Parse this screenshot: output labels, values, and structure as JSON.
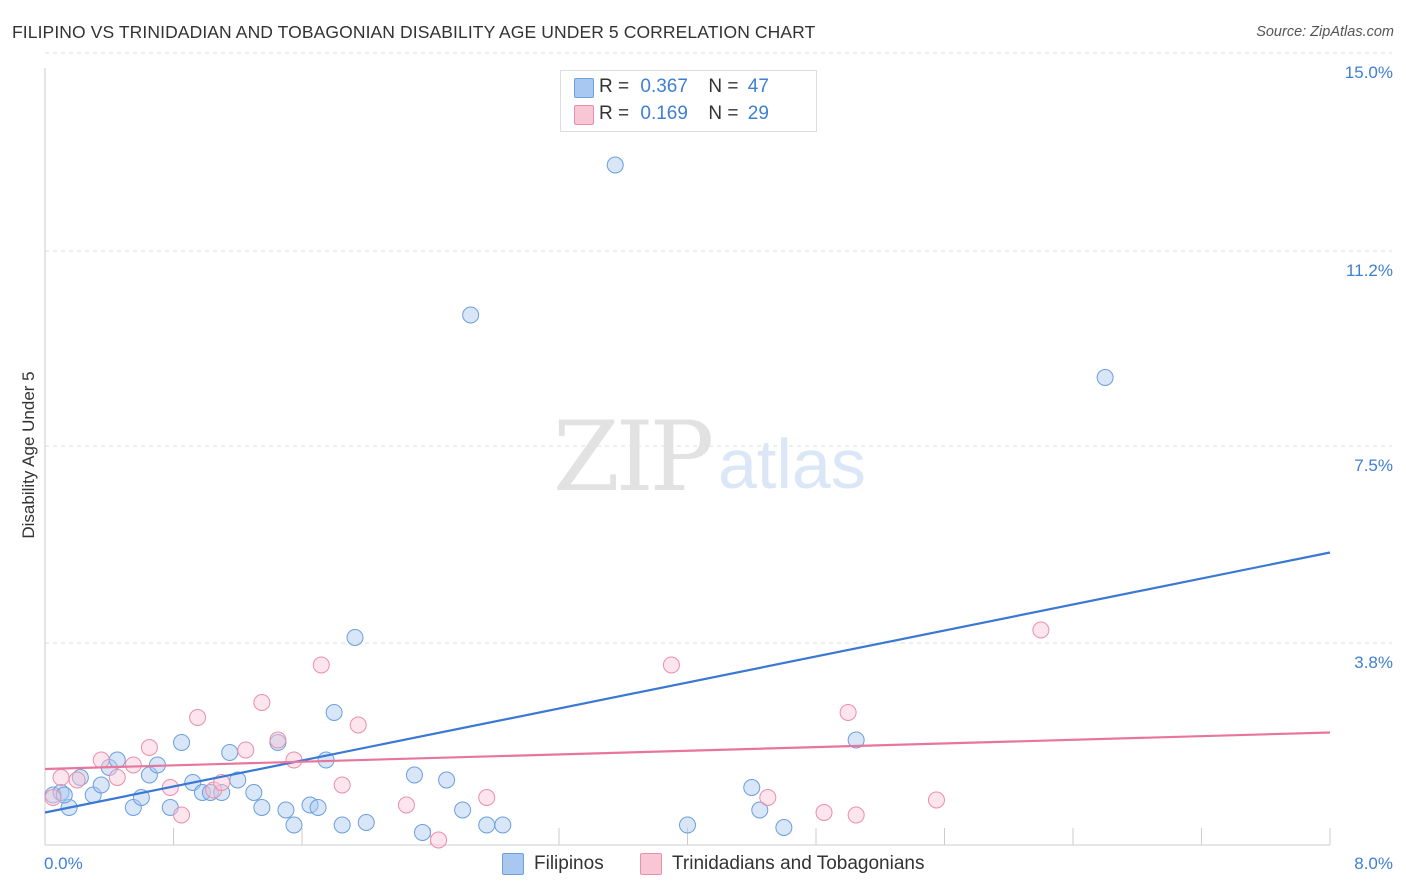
{
  "title": "FILIPINO VS TRINIDADIAN AND TOBAGONIAN DISABILITY AGE UNDER 5 CORRELATION CHART",
  "source": "Source: ZipAtlas.com",
  "watermark": {
    "zip": "ZIP",
    "atlas": "atlas"
  },
  "legend": {
    "r_label": "R =",
    "n_label": "N =",
    "rows": [
      {
        "r": "0.367",
        "n": "47",
        "color": "#a9c8f0",
        "border": "#6a9fe0"
      },
      {
        "r": "0.169",
        "n": "29",
        "color": "#f9c6d5",
        "border": "#eb8fab"
      }
    ]
  },
  "bottom_legend": [
    {
      "label": "Filipinos",
      "color": "#a9c8f0",
      "border": "#6a9fe0"
    },
    {
      "label": "Trinidadians and Tobagonians",
      "color": "#f9c6d5",
      "border": "#eb8fab"
    }
  ],
  "chart_data": {
    "type": "scatter",
    "xlabel": "",
    "ylabel": "Disability Age Under 5",
    "xlim": [
      0,
      8
    ],
    "ylim": [
      0,
      15.5
    ],
    "x_tick_labels": [
      "0.0%",
      "8.0%"
    ],
    "y_ticks": [
      3.8,
      7.5,
      11.2,
      15.0
    ],
    "y_tick_labels": [
      "3.8%",
      "7.5%",
      "11.2%",
      "15.0%"
    ],
    "grid": "horizontal dashed",
    "legend_position": "top-center",
    "colors": {
      "blue": "#3a78d4",
      "pink": "#e8769b"
    },
    "series": [
      {
        "name": "Filipinos",
        "r": 0.367,
        "n": 47,
        "trend": [
          [
            0,
            0.65
          ],
          [
            8,
            5.85
          ]
        ],
        "points": [
          [
            0.05,
            1.0
          ],
          [
            0.1,
            1.05
          ],
          [
            0.15,
            0.75
          ],
          [
            0.22,
            1.35
          ],
          [
            0.3,
            1.0
          ],
          [
            0.35,
            1.2
          ],
          [
            0.4,
            1.55
          ],
          [
            0.45,
            1.7
          ],
          [
            0.55,
            0.75
          ],
          [
            0.6,
            0.95
          ],
          [
            0.65,
            1.4
          ],
          [
            0.7,
            1.6
          ],
          [
            0.78,
            0.75
          ],
          [
            0.85,
            2.05
          ],
          [
            0.92,
            1.25
          ],
          [
            0.98,
            1.05
          ],
          [
            1.03,
            1.05
          ],
          [
            1.1,
            1.05
          ],
          [
            1.15,
            1.85
          ],
          [
            1.2,
            1.3
          ],
          [
            1.3,
            1.05
          ],
          [
            1.35,
            0.75
          ],
          [
            1.45,
            2.05
          ],
          [
            1.5,
            0.7
          ],
          [
            1.55,
            0.4
          ],
          [
            1.65,
            0.8
          ],
          [
            1.7,
            0.75
          ],
          [
            1.75,
            1.7
          ],
          [
            1.8,
            2.65
          ],
          [
            1.85,
            0.4
          ],
          [
            1.93,
            4.15
          ],
          [
            2.0,
            0.45
          ],
          [
            2.3,
            1.4
          ],
          [
            2.35,
            0.25
          ],
          [
            2.5,
            1.3
          ],
          [
            2.6,
            0.7
          ],
          [
            2.75,
            0.4
          ],
          [
            2.85,
            0.4
          ],
          [
            3.55,
            13.6
          ],
          [
            2.65,
            10.6
          ],
          [
            4.0,
            0.4
          ],
          [
            4.4,
            1.15
          ],
          [
            4.45,
            0.7
          ],
          [
            4.6,
            0.35
          ],
          [
            5.05,
            2.1
          ],
          [
            6.6,
            9.35
          ],
          [
            0.12,
            1.0
          ]
        ]
      },
      {
        "name": "Trinidadians and Tobagonians",
        "r": 0.169,
        "n": 29,
        "trend": [
          [
            0,
            1.52
          ],
          [
            8,
            2.25
          ]
        ],
        "points": [
          [
            0.05,
            0.95
          ],
          [
            0.1,
            1.35
          ],
          [
            0.2,
            1.3
          ],
          [
            0.35,
            1.7
          ],
          [
            0.45,
            1.35
          ],
          [
            0.55,
            1.6
          ],
          [
            0.65,
            1.95
          ],
          [
            0.78,
            1.15
          ],
          [
            0.85,
            0.6
          ],
          [
            0.95,
            2.55
          ],
          [
            1.05,
            1.1
          ],
          [
            1.1,
            1.25
          ],
          [
            1.25,
            1.9
          ],
          [
            1.35,
            2.85
          ],
          [
            1.45,
            2.1
          ],
          [
            1.55,
            1.7
          ],
          [
            1.72,
            3.6
          ],
          [
            1.85,
            1.2
          ],
          [
            1.95,
            2.4
          ],
          [
            2.25,
            0.8
          ],
          [
            2.45,
            0.1
          ],
          [
            2.75,
            0.95
          ],
          [
            3.9,
            3.6
          ],
          [
            4.5,
            0.95
          ],
          [
            4.85,
            0.65
          ],
          [
            5.0,
            2.65
          ],
          [
            5.05,
            0.6
          ],
          [
            5.55,
            0.9
          ],
          [
            6.2,
            4.3
          ]
        ]
      }
    ]
  }
}
